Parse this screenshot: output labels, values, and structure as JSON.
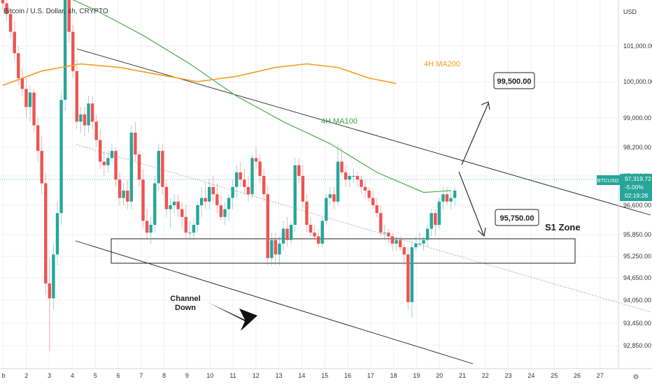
{
  "header": {
    "title": "Bitcoin / U.S. Dollar, 4h, CRYPTO"
  },
  "colors": {
    "up": "#26a69a",
    "down": "#ef5350",
    "ma100": "#4caf50",
    "ma200": "#f59b1c",
    "grid": "#eef0f3",
    "badge": "#26a69a"
  },
  "chart_data": {
    "type": "candlestick",
    "currency_label": "USD",
    "y_ticks": [
      "101,000.00",
      "100,000.00",
      "99,000.00",
      "98,200.00",
      "97,400.00",
      "96,600.00",
      "95,850.00",
      "95,250.00",
      "94,650.00",
      "94,050.00",
      "93,450.00",
      "92,850.00"
    ],
    "x_ticks": [
      "b",
      "2",
      "3",
      "4",
      "5",
      "6",
      "7",
      "8",
      "9",
      "10",
      "11",
      "12",
      "13",
      "14",
      "15",
      "16",
      "17",
      "18",
      "19",
      "20",
      "21",
      "22",
      "23",
      "24",
      "25",
      "26",
      "27"
    ],
    "last_price": {
      "symbol": "BTCUSD",
      "price": "97,319.72",
      "change": "-5.00%",
      "countdown": "02:19:28"
    },
    "candles": [
      [
        102400,
        102600,
        102000,
        102200
      ],
      [
        102200,
        102500,
        101700,
        101900
      ],
      [
        101900,
        102000,
        101200,
        101400
      ],
      [
        101400,
        101700,
        100600,
        100800
      ],
      [
        100800,
        101000,
        99900,
        100100
      ],
      [
        100100,
        100400,
        99600,
        99800
      ],
      [
        99800,
        100100,
        99000,
        99300
      ],
      [
        99300,
        99900,
        98900,
        99700
      ],
      [
        99700,
        99800,
        98600,
        98800
      ],
      [
        98800,
        99000,
        97800,
        98100
      ],
      [
        98100,
        98500,
        96900,
        97200
      ],
      [
        97200,
        97500,
        94200,
        94500
      ],
      [
        94500,
        95200,
        92700,
        94100
      ],
      [
        94100,
        95600,
        93800,
        95300
      ],
      [
        95300,
        96700,
        95000,
        96400
      ],
      [
        96400,
        99700,
        96100,
        99500
      ],
      [
        99500,
        102600,
        99200,
        102300
      ],
      [
        102300,
        102500,
        101100,
        101400
      ],
      [
        101400,
        101600,
        100100,
        100300
      ],
      [
        100300,
        100600,
        98700,
        98900
      ],
      [
        98900,
        99300,
        98600,
        99100
      ],
      [
        99100,
        99300,
        98500,
        98800
      ],
      [
        98800,
        99600,
        98600,
        99400
      ],
      [
        99400,
        99600,
        98700,
        98900
      ],
      [
        98900,
        99100,
        98200,
        98400
      ],
      [
        98400,
        98700,
        97600,
        97800
      ],
      [
        97800,
        98100,
        97400,
        97700
      ],
      [
        97700,
        98100,
        97500,
        97900
      ],
      [
        97900,
        98300,
        97800,
        98100
      ],
      [
        98100,
        98200,
        97100,
        97300
      ],
      [
        97300,
        97500,
        96600,
        96800
      ],
      [
        96800,
        97200,
        96600,
        97000
      ],
      [
        97000,
        97300,
        96500,
        96700
      ],
      [
        96700,
        98800,
        96500,
        98600
      ],
      [
        98600,
        98900,
        97800,
        98000
      ],
      [
        98000,
        98100,
        97100,
        97300
      ],
      [
        97300,
        97600,
        96000,
        96200
      ],
      [
        96200,
        96500,
        95700,
        95900
      ],
      [
        95900,
        96300,
        95600,
        96100
      ],
      [
        96100,
        97400,
        95900,
        97200
      ],
      [
        97200,
        98300,
        97000,
        98100
      ],
      [
        98100,
        98300,
        96900,
        97100
      ],
      [
        97100,
        97300,
        96300,
        96500
      ],
      [
        96500,
        96800,
        96000,
        96600
      ],
      [
        96600,
        96900,
        96400,
        96700
      ],
      [
        96700,
        96900,
        96300,
        96500
      ],
      [
        96500,
        96700,
        96000,
        96300
      ],
      [
        96300,
        96600,
        95700,
        95900
      ],
      [
        95900,
        96200,
        95700,
        95900
      ],
      [
        95900,
        96300,
        95700,
        96100
      ],
      [
        96100,
        96700,
        95900,
        96600
      ],
      [
        96600,
        97100,
        96300,
        96800
      ],
      [
        96800,
        97200,
        96500,
        96700
      ],
      [
        96700,
        97300,
        96500,
        97100
      ],
      [
        97100,
        97400,
        96700,
        96900
      ],
      [
        96900,
        97200,
        96400,
        96600
      ],
      [
        96600,
        96900,
        96200,
        96300
      ],
      [
        96300,
        96700,
        96100,
        96500
      ],
      [
        96500,
        96900,
        96200,
        96800
      ],
      [
        96800,
        97300,
        96500,
        97100
      ],
      [
        97100,
        97700,
        96800,
        97500
      ],
      [
        97500,
        97800,
        97100,
        97300
      ],
      [
        97300,
        97600,
        96900,
        97100
      ],
      [
        97100,
        97400,
        96700,
        96900
      ],
      [
        96900,
        98000,
        96800,
        97900
      ],
      [
        97900,
        98200,
        97600,
        97800
      ],
      [
        97800,
        98000,
        97200,
        97400
      ],
      [
        97400,
        97600,
        96700,
        96900
      ],
      [
        96900,
        97100,
        95000,
        95200
      ],
      [
        95200,
        95900,
        95000,
        95700
      ],
      [
        95700,
        95900,
        95000,
        95300
      ],
      [
        95300,
        95800,
        95000,
        95600
      ],
      [
        95600,
        96200,
        95400,
        96000
      ],
      [
        96000,
        96300,
        95500,
        95700
      ],
      [
        95700,
        96200,
        95600,
        96100
      ],
      [
        96100,
        97900,
        95900,
        97700
      ],
      [
        97700,
        97900,
        97200,
        97400
      ],
      [
        97400,
        97700,
        96500,
        96700
      ],
      [
        96700,
        96900,
        95900,
        96100
      ],
      [
        96100,
        96300,
        95800,
        95900
      ],
      [
        95900,
        96100,
        95700,
        95800
      ],
      [
        95800,
        96000,
        95500,
        95600
      ],
      [
        95600,
        96300,
        95500,
        96200
      ],
      [
        96200,
        96900,
        96100,
        96800
      ],
      [
        96800,
        97100,
        96600,
        96900
      ],
      [
        96900,
        97100,
        96500,
        96700
      ],
      [
        96700,
        98300,
        96600,
        97800
      ],
      [
        97800,
        98200,
        97400,
        97500
      ],
      [
        97500,
        97700,
        97100,
        97300
      ],
      [
        97300,
        97500,
        97100,
        97400
      ],
      [
        97400,
        97600,
        97200,
        97400
      ],
      [
        97400,
        97500,
        97100,
        97300
      ],
      [
        97300,
        97400,
        96900,
        97100
      ],
      [
        97100,
        97300,
        96800,
        97000
      ],
      [
        97000,
        97100,
        96700,
        96800
      ],
      [
        96800,
        97000,
        96500,
        96600
      ],
      [
        96600,
        96800,
        96300,
        96400
      ],
      [
        96400,
        96600,
        95800,
        95900
      ],
      [
        95900,
        96100,
        95700,
        95900
      ],
      [
        95900,
        96000,
        95600,
        95800
      ],
      [
        95800,
        95900,
        95400,
        95600
      ],
      [
        95600,
        95800,
        95400,
        95700
      ],
      [
        95700,
        95800,
        95400,
        95500
      ],
      [
        95500,
        95600,
        95000,
        95300
      ],
      [
        95300,
        95500,
        93800,
        94000
      ],
      [
        94000,
        95700,
        93600,
        95500
      ],
      [
        95500,
        95800,
        95400,
        95600
      ],
      [
        95600,
        95900,
        95500,
        95600
      ],
      [
        95600,
        95800,
        95400,
        95700
      ],
      [
        95700,
        96100,
        95500,
        96000
      ],
      [
        96000,
        96500,
        95800,
        96400
      ],
      [
        96400,
        96500,
        95800,
        96100
      ],
      [
        96100,
        96800,
        96000,
        96700
      ],
      [
        96700,
        97100,
        96500,
        96900
      ],
      [
        96900,
        97100,
        96600,
        96700
      ],
      [
        96700,
        97000,
        96500,
        96800
      ],
      [
        96800,
        97100,
        96600,
        97000
      ]
    ],
    "ma100": [
      [
        0,
        103200
      ],
      [
        12,
        102600
      ],
      [
        24,
        102000
      ],
      [
        36,
        101300
      ],
      [
        48,
        100500
      ],
      [
        60,
        99600
      ],
      [
        72,
        98900
      ],
      [
        84,
        98300
      ],
      [
        96,
        97500
      ],
      [
        108,
        96950
      ],
      [
        115,
        97000
      ]
    ],
    "ma200": [
      [
        0,
        99900
      ],
      [
        10,
        100300
      ],
      [
        20,
        100500
      ],
      [
        30,
        100400
      ],
      [
        40,
        100200
      ],
      [
        50,
        100000
      ],
      [
        60,
        100150
      ],
      [
        70,
        100400
      ],
      [
        78,
        100500
      ],
      [
        86,
        100400
      ],
      [
        94,
        100100
      ],
      [
        101,
        99950
      ]
    ],
    "annotations": {
      "ma200_label": "4H MA200",
      "ma100_label": "4H MA100",
      "target1": "99,500.00",
      "target2": "95,750.00",
      "zone_label": "S1 Zone",
      "channel_label_line1": "Channel",
      "channel_label_line2": "Down"
    }
  }
}
